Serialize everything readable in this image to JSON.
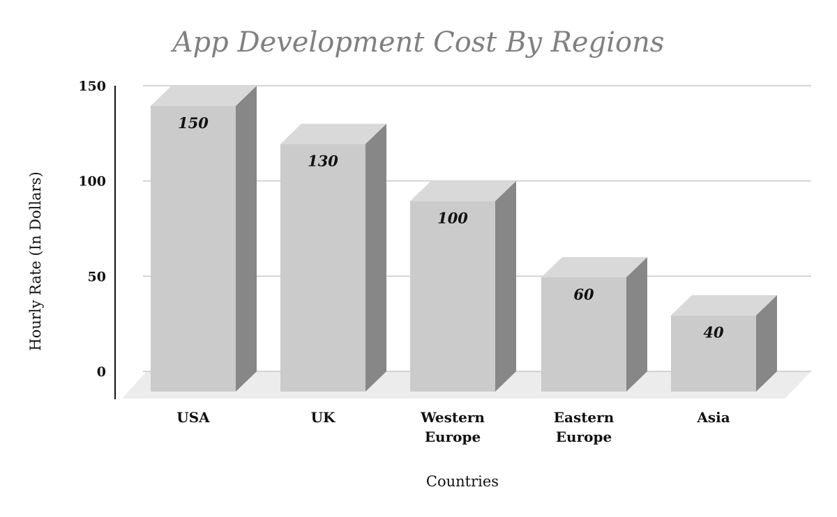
{
  "chart_data": {
    "type": "bar",
    "title": "App Development Cost By Regions",
    "xlabel": "Countries",
    "ylabel": "Hourly Rate (In Dollars)",
    "categories": [
      [
        "USA"
      ],
      [
        "UK"
      ],
      [
        "Western",
        "Europe"
      ],
      [
        "Eastern",
        "Europe"
      ],
      [
        "Asia"
      ]
    ],
    "values": [
      150,
      130,
      100,
      60,
      40
    ],
    "y_ticks": [
      "0",
      "50",
      "100",
      "150"
    ],
    "ylim": [
      0,
      150
    ],
    "grid": true,
    "legend": false,
    "style": "3d",
    "colors": {
      "bar_front": "#cbcbcb",
      "bar_top": "#d9d9d9",
      "bar_side": "#878787",
      "floor": "#ececec",
      "title": "#808080"
    }
  }
}
